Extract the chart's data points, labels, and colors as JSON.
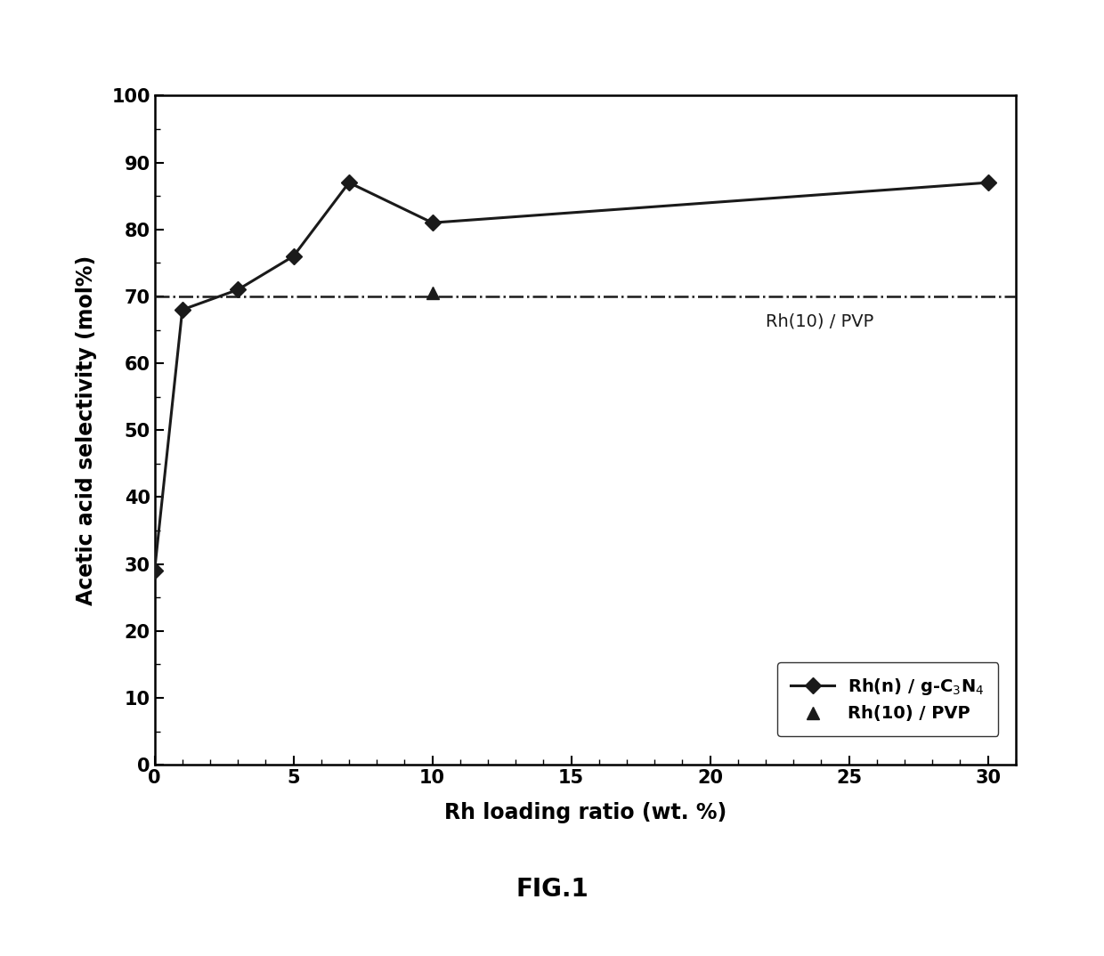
{
  "series1_x": [
    0,
    1,
    3,
    5,
    7,
    10,
    30
  ],
  "series1_y": [
    29,
    68,
    71,
    76,
    87,
    81,
    87
  ],
  "series2_x": [
    10
  ],
  "series2_y": [
    70.5
  ],
  "pvp_line_y": 70,
  "xlabel": "Rh loading ratio (wt. %)",
  "ylabel": "Acetic acid selectivity (mol%)",
  "ylim": [
    0,
    100
  ],
  "xlim": [
    0,
    31
  ],
  "xticks": [
    0,
    5,
    10,
    15,
    20,
    25,
    30
  ],
  "yticks": [
    0,
    10,
    20,
    30,
    40,
    50,
    60,
    70,
    80,
    90,
    100
  ],
  "pvp_label": "Rh(10) / PVP",
  "legend_label1": "Rh(n) / g-C$_3$N$_4$",
  "legend_label2": "Rh(10) / PVP",
  "fig_label": "FIG.1",
  "line_color": "#1a1a1a",
  "background_color": "#ffffff",
  "label_fontsize": 17,
  "tick_fontsize": 15,
  "legend_fontsize": 14,
  "annotation_fontsize": 14,
  "fig_label_fontsize": 20
}
